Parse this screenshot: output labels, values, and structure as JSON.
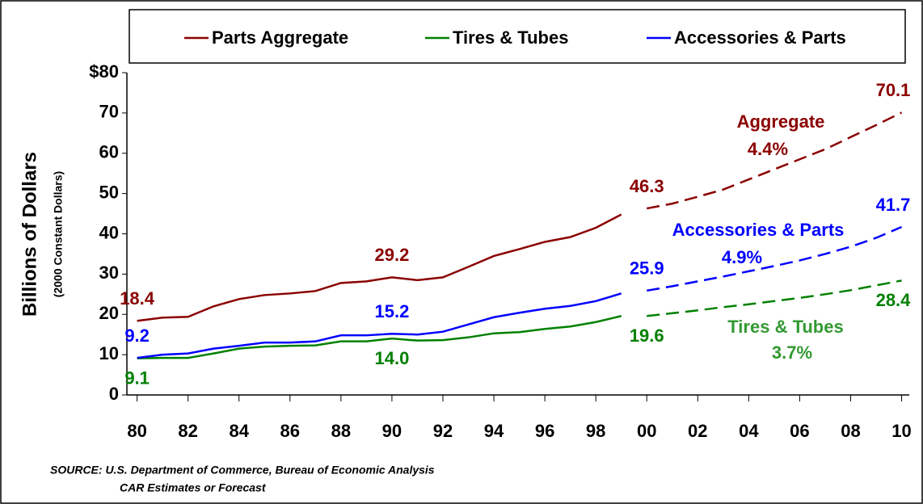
{
  "chart_data": {
    "type": "line",
    "y_label": "Billions of Dollars",
    "y_sublabel": "(2000 Constant Dollars)",
    "source": "SOURCE:  U.S. Department of Commerce, Bureau of Economic Analysis",
    "source_note": "CAR Estimates or Forecast",
    "x": [
      1980,
      1981,
      1982,
      1983,
      1984,
      1985,
      1986,
      1987,
      1988,
      1989,
      1990,
      1991,
      1992,
      1993,
      1994,
      1995,
      1996,
      1997,
      1998,
      1999,
      2000,
      2001,
      2002,
      2003,
      2004,
      2005,
      2006,
      2007,
      2008,
      2009,
      2010
    ],
    "dashed_from_x": 2000,
    "series": [
      {
        "name": "Parts Aggregate",
        "color": "#8b0000",
        "label_position": "above",
        "values": [
          18.4,
          19.2,
          19.4,
          22,
          23.8,
          24.8,
          25.2,
          25.8,
          27.8,
          28.2,
          29.2,
          28.5,
          29.2,
          31.8,
          34.5,
          36.2,
          38,
          39.2,
          41.5,
          44.8,
          46.3,
          47.5,
          49.2,
          51,
          53.5,
          56,
          58.5,
          61,
          64,
          67,
          70.1
        ],
        "value_labels": [
          "18.4",
          null,
          null,
          null,
          null,
          null,
          null,
          null,
          null,
          null,
          "29.2",
          null,
          null,
          null,
          null,
          null,
          null,
          null,
          null,
          null,
          "46.3",
          null,
          null,
          null,
          null,
          null,
          null,
          null,
          null,
          null,
          "70.1"
        ]
      },
      {
        "name": "Tires & Tubes",
        "color": "#008000",
        "label_position": "below",
        "values": [
          9.1,
          9.2,
          9.2,
          10.3,
          11.5,
          12,
          12.2,
          12.3,
          13.3,
          13.3,
          14,
          13.5,
          13.6,
          14.3,
          15.3,
          15.6,
          16.4,
          17,
          18.1,
          19.6,
          19.6,
          20.3,
          21,
          21.8,
          22.5,
          23.3,
          24.1,
          25,
          26,
          27.2,
          28.4
        ],
        "value_labels": [
          "9.1",
          null,
          null,
          null,
          null,
          null,
          null,
          null,
          null,
          null,
          "14.0",
          null,
          null,
          null,
          null,
          null,
          null,
          null,
          null,
          null,
          "19.6",
          null,
          null,
          null,
          null,
          null,
          null,
          null,
          null,
          null,
          "28.4"
        ]
      },
      {
        "name": "Accessories & Parts",
        "color": "#0000ff",
        "label_position": "above",
        "values": [
          9.2,
          10,
          10.3,
          11.5,
          12.2,
          13,
          13,
          13.3,
          14.8,
          14.8,
          15.2,
          15,
          15.7,
          17.5,
          19.3,
          20.4,
          21.4,
          22.1,
          23.3,
          25.2,
          25.9,
          27,
          28.2,
          29.4,
          30.7,
          32,
          33.4,
          35,
          36.8,
          39,
          41.7
        ],
        "value_labels": [
          "9.2",
          null,
          null,
          null,
          null,
          null,
          null,
          null,
          null,
          null,
          "15.2",
          null,
          null,
          null,
          null,
          null,
          null,
          null,
          null,
          null,
          "25.9",
          null,
          null,
          null,
          null,
          null,
          null,
          null,
          null,
          null,
          "41.7"
        ]
      }
    ],
    "annotations": [
      {
        "text": "Aggregate",
        "color": "#8b0000"
      },
      {
        "text": "4.4%",
        "color": "#8b0000"
      },
      {
        "text": "Accessories & Parts",
        "color": "#0000ff"
      },
      {
        "text": "4.9%",
        "color": "#0000ff"
      },
      {
        "text": "Tires & Tubes",
        "color": "#339933"
      },
      {
        "text": "3.7%",
        "color": "#339933"
      }
    ],
    "xlim": [
      1979.6,
      2010.3
    ],
    "xticks": [
      {
        "value": 1980,
        "label": "80"
      },
      {
        "value": 1982,
        "label": "82"
      },
      {
        "value": 1984,
        "label": "84"
      },
      {
        "value": 1986,
        "label": "86"
      },
      {
        "value": 1988,
        "label": "88"
      },
      {
        "value": 1990,
        "label": "90"
      },
      {
        "value": 1992,
        "label": "92"
      },
      {
        "value": 1994,
        "label": "94"
      },
      {
        "value": 1996,
        "label": "96"
      },
      {
        "value": 1998,
        "label": "98"
      },
      {
        "value": 2000,
        "label": "00"
      },
      {
        "value": 2002,
        "label": "02"
      },
      {
        "value": 2004,
        "label": "04"
      },
      {
        "value": 2006,
        "label": "06"
      },
      {
        "value": 2008,
        "label": "08"
      },
      {
        "value": 2010,
        "label": "10"
      }
    ],
    "ylim": [
      0,
      80
    ],
    "yticks": [
      0,
      10,
      20,
      30,
      40,
      50,
      60,
      70,
      {
        "value": 80,
        "label": "$80"
      }
    ],
    "legend": "top"
  }
}
